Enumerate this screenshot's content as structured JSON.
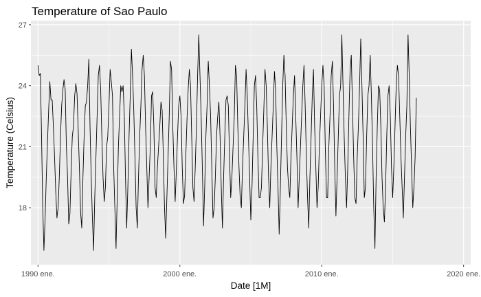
{
  "chart_data": {
    "type": "line",
    "title": "Temperature of Sao Paulo",
    "xlabel": "Date [1M]",
    "ylabel": "Temperature (Celsius)",
    "x_type": "date-monthly",
    "x_start": "1990-01",
    "x_tick_labels": [
      "1990 ene.",
      "2000 ene.",
      "2010 ene.",
      "2020 ene."
    ],
    "x_tick_years": [
      1990,
      2000,
      2010,
      2020
    ],
    "xlim": [
      "1989-07",
      "2020-07"
    ],
    "y_ticks": [
      18,
      21,
      24,
      27
    ],
    "ylim": [
      15.2,
      27.2
    ],
    "grid": true,
    "panel_color": "#ebebeb",
    "grid_color": "#ffffff",
    "line_color": "#000000",
    "series": [
      {
        "values": [
          25.0,
          24.5,
          24.6,
          21.5,
          18.0,
          15.9,
          17.5,
          19.5,
          21.2,
          22.8,
          24.2,
          23.3,
          23.3,
          22.0,
          20.5,
          18.8,
          17.5,
          18.0,
          19.5,
          21.5,
          23.0,
          23.8,
          24.3,
          23.8,
          21.0,
          19.5,
          17.2,
          17.7,
          19.8,
          21.5,
          22.0,
          23.5,
          24.1,
          23.6,
          21.8,
          20.0,
          17.8,
          17.0,
          19.5,
          21.5,
          23.0,
          23.2,
          24.0,
          25.3,
          22.0,
          19.5,
          17.5,
          15.9,
          18.5,
          20.5,
          22.5,
          24.5,
          25.0,
          23.8,
          21.5,
          19.5,
          18.3,
          19.0,
          21.0,
          21.5,
          23.0,
          24.8,
          24.2,
          23.5,
          20.0,
          18.0,
          16.0,
          18.5,
          21.0,
          22.5,
          24.0,
          23.7,
          24.0,
          22.5,
          19.5,
          17.0,
          19.0,
          21.5,
          23.5,
          25.8,
          24.5,
          22.8,
          20.5,
          18.0,
          17.0,
          19.5,
          21.5,
          23.0,
          24.8,
          25.5,
          24.5,
          22.0,
          20.0,
          18.0,
          19.5,
          21.0,
          23.5,
          23.7,
          22.0,
          19.0,
          18.5,
          20.0,
          21.0,
          22.0,
          23.2,
          22.8,
          20.5,
          18.0,
          16.5,
          18.5,
          20.5,
          22.5,
          25.2,
          24.8,
          22.0,
          20.0,
          18.3,
          19.8,
          21.5,
          23.0,
          23.5,
          22.5,
          20.0,
          18.2,
          18.6,
          20.5,
          22.3,
          23.8,
          24.8,
          24.0,
          21.5,
          19.0,
          18.3,
          20.0,
          22.0,
          24.5,
          26.5,
          24.5,
          22.5,
          20.0,
          17.1,
          19.0,
          21.5,
          23.0,
          25.2,
          24.0,
          22.5,
          20.0,
          17.5,
          18.0,
          19.5,
          21.5,
          22.5,
          23.2,
          21.5,
          19.0,
          17.0,
          19.5,
          21.5,
          23.3,
          23.5,
          23.0,
          20.5,
          18.5,
          19.5,
          21.0,
          22.5,
          25.0,
          24.5,
          22.0,
          20.0,
          18.5,
          18.0,
          20.0,
          21.5,
          23.0,
          24.8,
          23.5,
          21.5,
          19.5,
          17.4,
          19.0,
          21.5,
          24.0,
          24.5,
          23.0,
          20.5,
          18.5,
          18.5,
          19.0,
          21.0,
          22.8,
          24.8,
          24.0,
          22.0,
          19.5,
          18.0,
          20.0,
          21.5,
          23.0,
          24.7,
          23.8,
          21.0,
          19.0,
          16.7,
          19.0,
          21.5,
          24.0,
          25.5,
          24.5,
          22.0,
          20.0,
          19.0,
          18.5,
          20.5,
          22.0,
          23.5,
          24.5,
          22.5,
          20.5,
          18.0,
          19.5,
          21.0,
          22.5,
          24.0,
          25.0,
          23.0,
          20.5,
          18.5,
          17.0,
          19.5,
          21.5,
          23.5,
          24.8,
          22.0,
          20.0,
          18.0,
          19.0,
          21.0,
          22.5,
          24.0,
          25.0,
          24.0,
          21.0,
          18.5,
          18.5,
          21.0,
          22.5,
          24.5,
          25.2,
          23.0,
          20.0,
          17.6,
          19.5,
          21.5,
          23.5,
          24.0,
          26.5,
          24.0,
          21.5,
          19.5,
          18.0,
          20.0,
          22.5,
          24.8,
          25.5,
          23.0,
          20.5,
          18.5,
          18.2,
          20.5,
          22.0,
          24.0,
          26.3,
          24.0,
          21.5,
          18.5,
          19.0,
          21.5,
          23.5,
          24.0,
          25.5,
          23.5,
          21.0,
          18.0,
          16.0,
          19.5,
          22.0,
          24.0,
          23.8,
          22.0,
          19.5,
          18.0,
          17.3,
          19.0,
          21.5,
          23.5,
          24.0,
          22.5,
          20.0,
          18.5,
          20.0,
          22.0,
          24.0,
          25.0,
          24.5,
          22.5,
          20.5,
          19.0,
          17.5,
          19.5,
          21.5,
          23.0,
          26.5,
          24.5,
          22.0,
          20.0,
          18.0,
          19.0,
          20.5,
          23.4
        ]
      }
    ]
  }
}
